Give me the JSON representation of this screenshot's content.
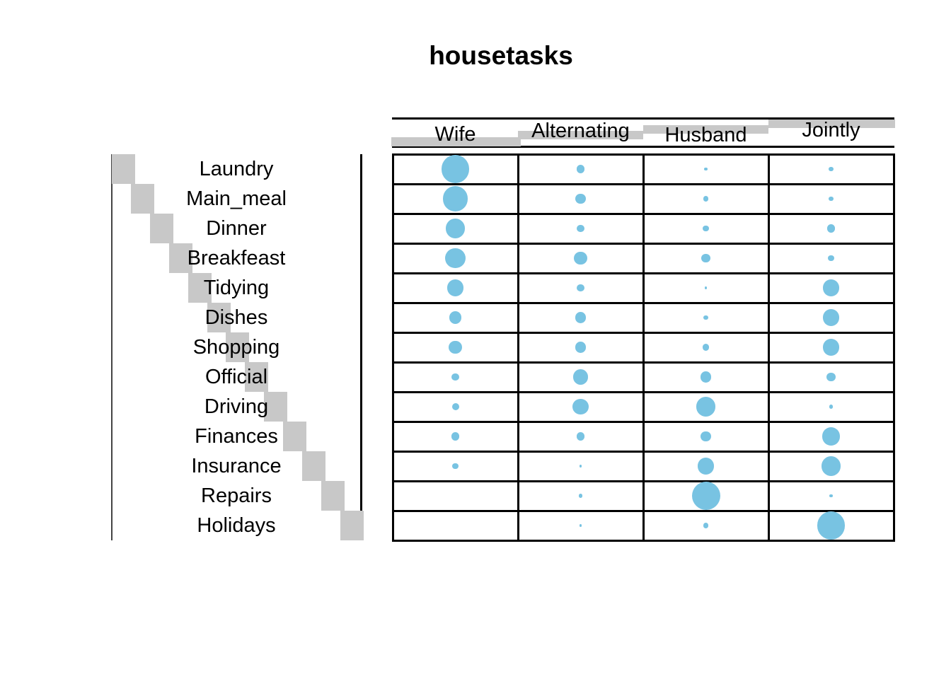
{
  "title": "housetasks",
  "chart_data": {
    "type": "balloon",
    "title": "housetasks",
    "description": "Balloon plot of the housetasks contingency table; dot area is proportional to cell count; gray rectangles mark row/column margins",
    "columns": [
      "Wife",
      "Alternating",
      "Husband",
      "Jointly"
    ],
    "rows": [
      "Laundry",
      "Main_meal",
      "Dinner",
      "Breakfeast",
      "Tidying",
      "Dishes",
      "Shopping",
      "Official",
      "Driving",
      "Finances",
      "Insurance",
      "Repairs",
      "Holidays"
    ],
    "series": [
      {
        "name": "Laundry",
        "values": [
          156,
          14,
          2,
          4
        ]
      },
      {
        "name": "Main_meal",
        "values": [
          124,
          20,
          5,
          4
        ]
      },
      {
        "name": "Dinner",
        "values": [
          77,
          11,
          7,
          13
        ]
      },
      {
        "name": "Breakfeast",
        "values": [
          82,
          36,
          15,
          7
        ]
      },
      {
        "name": "Tidying",
        "values": [
          53,
          11,
          1,
          57
        ]
      },
      {
        "name": "Dishes",
        "values": [
          32,
          24,
          4,
          53
        ]
      },
      {
        "name": "Shopping",
        "values": [
          33,
          23,
          9,
          55
        ]
      },
      {
        "name": "Official",
        "values": [
          12,
          46,
          23,
          15
        ]
      },
      {
        "name": "Driving",
        "values": [
          10,
          51,
          75,
          3
        ]
      },
      {
        "name": "Finances",
        "values": [
          13,
          13,
          21,
          66
        ]
      },
      {
        "name": "Insurance",
        "values": [
          8,
          1,
          53,
          77
        ]
      },
      {
        "name": "Repairs",
        "values": [
          0,
          3,
          160,
          2
        ]
      },
      {
        "name": "Holidays",
        "values": [
          0,
          1,
          6,
          153
        ]
      }
    ],
    "max_value": 160,
    "xlabel": "",
    "ylabel": "",
    "legend": "none",
    "grid": "on",
    "colors": {
      "dot": "#78c3e2",
      "margin_rect": "#c8c8c8",
      "line": "#000000",
      "background": "#ffffff"
    }
  }
}
